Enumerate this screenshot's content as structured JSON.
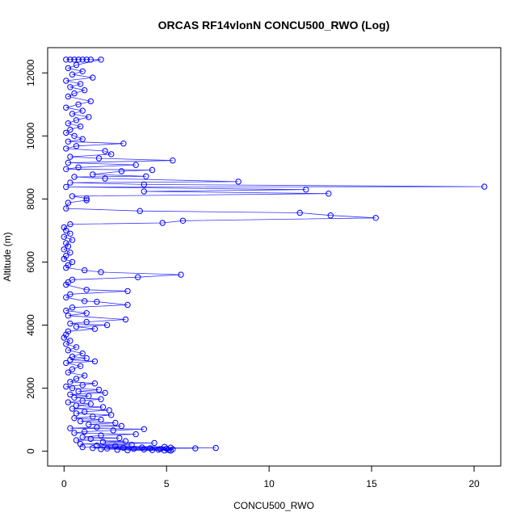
{
  "chart_data": {
    "type": "scatter",
    "title": "ORCAS RF14vlonN CONCU500_RWO (Log)",
    "xlabel": "CONCU500_RWO",
    "ylabel": "Altitude (m)",
    "xlim": [
      -0.8,
      21.3
    ],
    "ylim": [
      -470,
      12800
    ],
    "xticks": [
      0,
      5,
      10,
      15,
      20
    ],
    "yticks": [
      0,
      2000,
      4000,
      6000,
      8000,
      10000,
      12000
    ],
    "x_tick_labels": [
      "0",
      "5",
      "10",
      "15",
      "20"
    ],
    "y_tick_labels": [
      "0",
      "2000",
      "4000",
      "6000",
      "8000",
      "10000",
      "12000"
    ],
    "grid": false,
    "legend": "none",
    "markers": "open circles connected by lines",
    "series_color": "#0000ff",
    "line_color": "#3333ff",
    "series": [
      {
        "points": [
          [
            0.1,
            12420
          ],
          [
            0.3,
            12420
          ],
          [
            0.5,
            12420
          ],
          [
            0.7,
            12420
          ],
          [
            0.9,
            12420
          ],
          [
            1.1,
            12420
          ],
          [
            1.3,
            12420
          ],
          [
            1.8,
            12420
          ],
          [
            0.6,
            12250
          ],
          [
            0.2,
            12150
          ],
          [
            0.9,
            12050
          ],
          [
            0.4,
            11950
          ],
          [
            1.4,
            11850
          ],
          [
            0.1,
            11750
          ],
          [
            0.8,
            11650
          ],
          [
            0.3,
            11550
          ],
          [
            1.0,
            11450
          ],
          [
            0.5,
            11350
          ],
          [
            0.2,
            11250
          ],
          [
            1.3,
            11100
          ],
          [
            0.7,
            11000
          ],
          [
            0.1,
            10900
          ],
          [
            0.9,
            10800
          ],
          [
            0.4,
            10700
          ],
          [
            1.2,
            10600
          ],
          [
            0.6,
            10500
          ],
          [
            0.2,
            10400
          ],
          [
            0.8,
            10300
          ],
          [
            0.3,
            10200
          ],
          [
            0.1,
            10100
          ],
          [
            0.5,
            10000
          ],
          [
            0.9,
            9900
          ],
          [
            0.2,
            9820
          ],
          [
            2.9,
            9760
          ],
          [
            0.6,
            9680
          ],
          [
            0.1,
            9600
          ],
          [
            2.0,
            9520
          ],
          [
            2.3,
            9420
          ],
          [
            0.3,
            9340
          ],
          [
            1.7,
            9290
          ],
          [
            5.3,
            9220
          ],
          [
            0.2,
            9150
          ],
          [
            3.5,
            9080
          ],
          [
            0.7,
            9000
          ],
          [
            0.1,
            8950
          ],
          [
            4.3,
            8920
          ],
          [
            2.8,
            8880
          ],
          [
            1.4,
            8780
          ],
          [
            4.0,
            8720
          ],
          [
            0.5,
            8700
          ],
          [
            2.0,
            8650
          ],
          [
            8.5,
            8550
          ],
          [
            0.3,
            8520
          ],
          [
            3.9,
            8460
          ],
          [
            20.5,
            8390
          ],
          [
            0.1,
            8380
          ],
          [
            11.8,
            8300
          ],
          [
            3.9,
            8240
          ],
          [
            12.9,
            8170
          ],
          [
            0.4,
            8090
          ],
          [
            1.1,
            8020
          ],
          [
            1.1,
            7960
          ],
          [
            0.2,
            7880
          ],
          [
            0.1,
            7700
          ],
          [
            3.7,
            7620
          ],
          [
            11.5,
            7560
          ],
          [
            13.0,
            7480
          ],
          [
            15.2,
            7400
          ],
          [
            5.8,
            7310
          ],
          [
            4.8,
            7240
          ],
          [
            0.3,
            7200
          ],
          [
            0.0,
            7100
          ],
          [
            0.1,
            7000
          ],
          [
            0.3,
            6900
          ],
          [
            0.0,
            6800
          ],
          [
            0.4,
            6700
          ],
          [
            0.1,
            6600
          ],
          [
            0.2,
            6500
          ],
          [
            0.0,
            6400
          ],
          [
            0.3,
            6300
          ],
          [
            0.1,
            6200
          ],
          [
            0.0,
            6100
          ],
          [
            0.4,
            6000
          ],
          [
            0.2,
            5900
          ],
          [
            0.1,
            5820
          ],
          [
            1.0,
            5740
          ],
          [
            1.8,
            5680
          ],
          [
            5.7,
            5600
          ],
          [
            3.6,
            5520
          ],
          [
            0.4,
            5440
          ],
          [
            0.2,
            5360
          ],
          [
            0.1,
            5280
          ],
          [
            1.1,
            5120
          ],
          [
            3.1,
            5080
          ],
          [
            0.3,
            4980
          ],
          [
            0.1,
            4880
          ],
          [
            1.0,
            4760
          ],
          [
            1.6,
            4740
          ],
          [
            3.1,
            4640
          ],
          [
            0.4,
            4560
          ],
          [
            0.1,
            4460
          ],
          [
            1.1,
            4380
          ],
          [
            0.2,
            4300
          ],
          [
            3.0,
            4180
          ],
          [
            1.1,
            4100
          ],
          [
            0.3,
            4050
          ],
          [
            2.1,
            4000
          ],
          [
            0.6,
            3950
          ],
          [
            1.5,
            3880
          ],
          [
            0.2,
            3800
          ],
          [
            0.1,
            3700
          ],
          [
            0.0,
            3600
          ],
          [
            0.3,
            3500
          ],
          [
            0.1,
            3400
          ],
          [
            0.6,
            3300
          ],
          [
            0.2,
            3200
          ],
          [
            0.9,
            3100
          ],
          [
            0.4,
            3000
          ],
          [
            1.1,
            2950
          ],
          [
            0.3,
            2900
          ],
          [
            1.5,
            2850
          ],
          [
            0.1,
            2800
          ],
          [
            0.8,
            2700
          ],
          [
            0.4,
            2600
          ],
          [
            0.2,
            2500
          ],
          [
            1.0,
            2400
          ],
          [
            0.6,
            2300
          ],
          [
            0.3,
            2200
          ],
          [
            1.5,
            2150
          ],
          [
            0.9,
            2100
          ],
          [
            0.1,
            2050
          ],
          [
            0.4,
            2000
          ],
          [
            1.7,
            1950
          ],
          [
            0.7,
            1900
          ],
          [
            2.0,
            1850
          ],
          [
            0.3,
            1800
          ],
          [
            1.2,
            1750
          ],
          [
            0.5,
            1700
          ],
          [
            1.8,
            1650
          ],
          [
            0.9,
            1600
          ],
          [
            0.2,
            1550
          ],
          [
            1.3,
            1500
          ],
          [
            0.6,
            1450
          ],
          [
            1.9,
            1400
          ],
          [
            0.4,
            1350
          ],
          [
            2.2,
            1300
          ],
          [
            1.0,
            1250
          ],
          [
            0.6,
            1200
          ],
          [
            2.3,
            1150
          ],
          [
            1.4,
            1100
          ],
          [
            0.5,
            1050
          ],
          [
            1.8,
            1000
          ],
          [
            0.8,
            950
          ],
          [
            2.5,
            900
          ],
          [
            1.2,
            850
          ],
          [
            2.8,
            800
          ],
          [
            1.6,
            760
          ],
          [
            0.3,
            730
          ],
          [
            3.9,
            700
          ],
          [
            2.4,
            660
          ],
          [
            1.0,
            620
          ],
          [
            0.5,
            580
          ],
          [
            3.5,
            540
          ],
          [
            1.8,
            500
          ],
          [
            0.9,
            450
          ],
          [
            2.7,
            420
          ],
          [
            1.3,
            390
          ],
          [
            0.6,
            350
          ],
          [
            3.0,
            320
          ],
          [
            1.9,
            290
          ],
          [
            4.4,
            260
          ],
          [
            0.8,
            230
          ],
          [
            3.3,
            200
          ],
          [
            1.6,
            180
          ],
          [
            2.5,
            160
          ],
          [
            4.9,
            140
          ],
          [
            0.9,
            130
          ],
          [
            3.8,
            120
          ],
          [
            5.2,
            115
          ],
          [
            2.9,
            110
          ],
          [
            7.4,
            105
          ],
          [
            1.4,
            100
          ],
          [
            4.2,
            95
          ],
          [
            6.4,
            90
          ],
          [
            2.1,
            85
          ],
          [
            5.0,
            80
          ],
          [
            3.4,
            75
          ],
          [
            4.7,
            70
          ],
          [
            1.8,
            65
          ],
          [
            5.3,
            60
          ],
          [
            3.9,
            55
          ],
          [
            4.6,
            50
          ],
          [
            2.6,
            45
          ],
          [
            5.1,
            40
          ],
          [
            4.3,
            35
          ],
          [
            3.1,
            30
          ],
          [
            4.9,
            25
          ],
          [
            5.2,
            20
          ]
        ]
      }
    ]
  }
}
